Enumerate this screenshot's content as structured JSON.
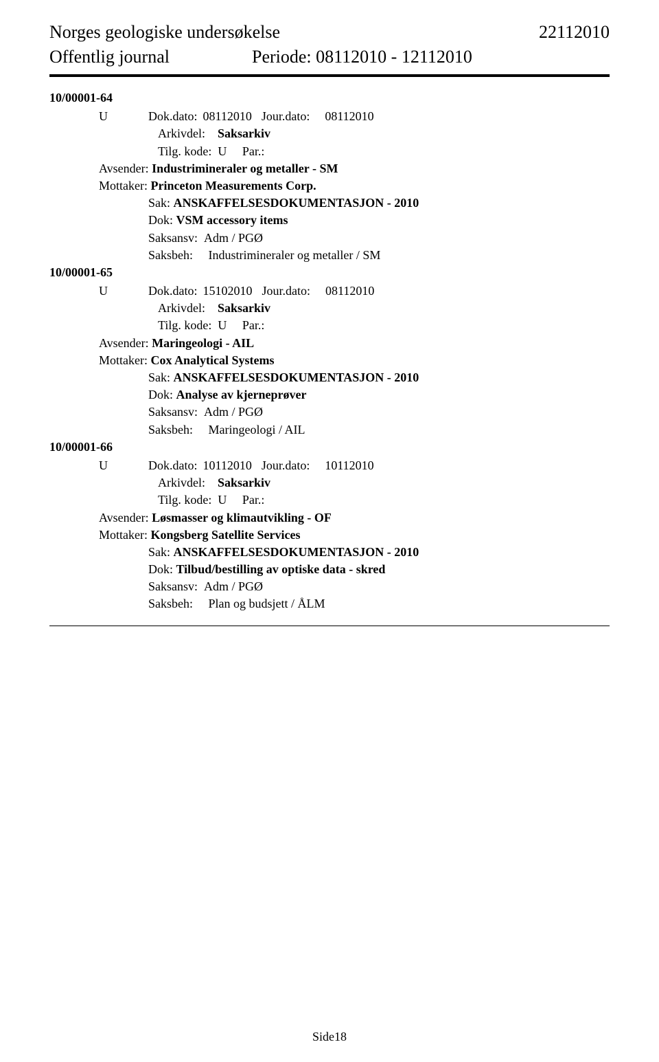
{
  "header": {
    "org_name": "Norges geologiske undersøkelse",
    "date_right": "22112010",
    "journal_label": "Offentlig journal",
    "period_label": "Periode: 08112010 - 12112010"
  },
  "entries": [
    {
      "case_id": "10/00001-64",
      "u_letter": "U",
      "dokdato_label": "Dok.dato:",
      "dokdato_val": "08112010",
      "jourdato_label": "Jour.dato:",
      "jourdato_val": "08112010",
      "arkivdel_label": "Arkivdel:",
      "arkivdel_val": "Saksarkiv",
      "tilg_label": "Tilg. kode:",
      "tilg_val": "U",
      "par_label": "Par.:",
      "avsender_label": "Avsender:",
      "avsender_val": "Industrimineraler og metaller - SM",
      "mottaker_label": "Mottaker:",
      "mottaker_val": "Princeton Measurements Corp.",
      "sak_label": "Sak:",
      "sak_val": "ANSKAFFELSESDOKUMENTASJON - 2010",
      "dok_label": "Dok:",
      "dok_val": "VSM accessory items",
      "saksansv_label": "Saksansv:",
      "saksansv_val": "Adm / PGØ",
      "saksbeh_label": "Saksbeh:",
      "saksbeh_val": "Industrimineraler og metaller / SM"
    },
    {
      "case_id": "10/00001-65",
      "u_letter": "U",
      "dokdato_label": "Dok.dato:",
      "dokdato_val": "15102010",
      "jourdato_label": "Jour.dato:",
      "jourdato_val": "08112010",
      "arkivdel_label": "Arkivdel:",
      "arkivdel_val": "Saksarkiv",
      "tilg_label": "Tilg. kode:",
      "tilg_val": "U",
      "par_label": "Par.:",
      "avsender_label": "Avsender:",
      "avsender_val": "Maringeologi - AIL",
      "mottaker_label": "Mottaker:",
      "mottaker_val": "Cox Analytical Systems",
      "sak_label": "Sak:",
      "sak_val": "ANSKAFFELSESDOKUMENTASJON - 2010",
      "dok_label": "Dok:",
      "dok_val": "Analyse av kjerneprøver",
      "saksansv_label": "Saksansv:",
      "saksansv_val": "Adm / PGØ",
      "saksbeh_label": "Saksbeh:",
      "saksbeh_val": "Maringeologi / AIL"
    },
    {
      "case_id": "10/00001-66",
      "u_letter": "U",
      "dokdato_label": "Dok.dato:",
      "dokdato_val": "10112010",
      "jourdato_label": "Jour.dato:",
      "jourdato_val": "10112010",
      "arkivdel_label": "Arkivdel:",
      "arkivdel_val": "Saksarkiv",
      "tilg_label": "Tilg. kode:",
      "tilg_val": "U",
      "par_label": "Par.:",
      "avsender_label": "Avsender:",
      "avsender_val": "Løsmasser og klimautvikling - OF",
      "mottaker_label": "Mottaker:",
      "mottaker_val": "Kongsberg Satellite Services",
      "sak_label": "Sak:",
      "sak_val": "ANSKAFFELSESDOKUMENTASJON - 2010",
      "dok_label": "Dok:",
      "dok_val": "Tilbud/bestilling av optiske data - skred",
      "saksansv_label": "Saksansv:",
      "saksansv_val": "Adm / PGØ",
      "saksbeh_label": "Saksbeh:",
      "saksbeh_val": "Plan og budsjett / ÅLM"
    }
  ],
  "footer": {
    "page_label": "Side18"
  }
}
